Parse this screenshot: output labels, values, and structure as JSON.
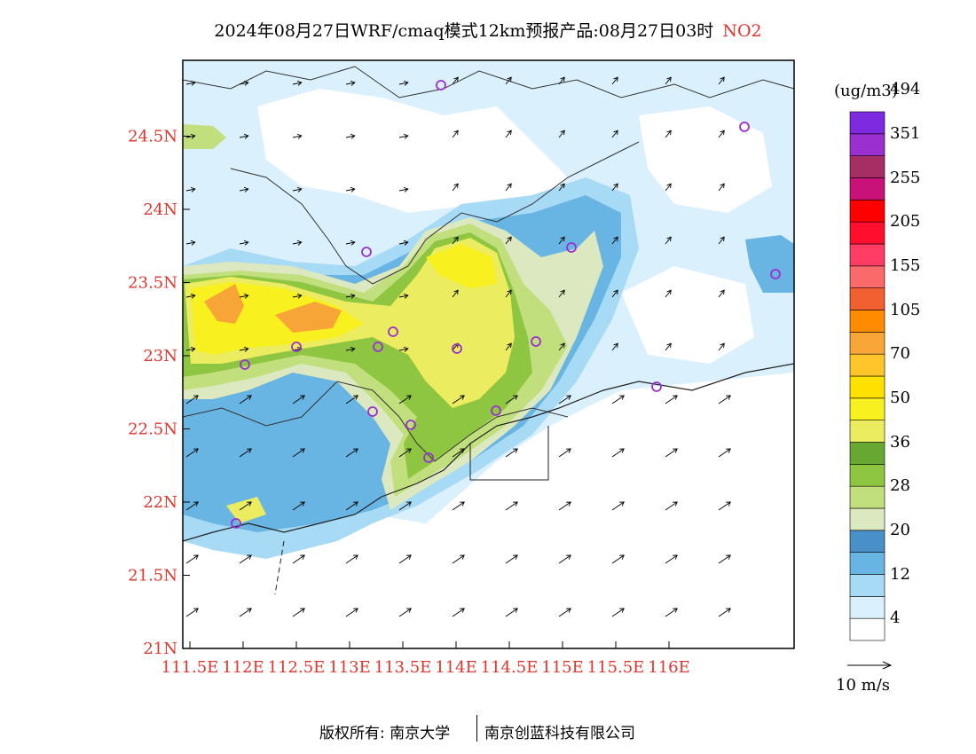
{
  "header": {
    "title": "2024年08月27日WRF/cmaq模式12km预报产品:08月27日03时",
    "species": "NO2"
  },
  "axes": {
    "lon_labels": [
      "111.5E",
      "112E",
      "112.5E",
      "113E",
      "113.5E",
      "114E",
      "114.5E",
      "115E",
      "115.5E",
      "116E"
    ],
    "lat_labels": [
      "21N",
      "21.5N",
      "22N",
      "22.5N",
      "23N",
      "23.5N",
      "24N",
      "24.5N"
    ]
  },
  "legend": {
    "unit": "(ug/m3)",
    "labels": [
      "4",
      "12",
      "20",
      "28",
      "36",
      "50",
      "70",
      "105",
      "155",
      "205",
      "255",
      "351",
      "494"
    ],
    "colors": [
      "#ffffff",
      "#daf0fc",
      "#a6daf5",
      "#68b4e2",
      "#4a90c8",
      "#dce8c0",
      "#c2df7e",
      "#8fc641",
      "#66a832",
      "#ecec60",
      "#f9f020",
      "#ffe100",
      "#ffc52a",
      "#f7a536",
      "#ff8c00",
      "#f26032",
      "#fa6a6a",
      "#ff3c64",
      "#ff0f2d",
      "#ff0000",
      "#c8127a",
      "#a52e64",
      "#9b30d0",
      "#7d2ae0"
    ],
    "ref_vector_label": "10 m/s"
  },
  "stations": {
    "marker_color": "#9b30d0",
    "count": 19
  },
  "footer": {
    "copyright": "版权所有: 南京大学",
    "company": "南京创蓝科技有限公司"
  }
}
